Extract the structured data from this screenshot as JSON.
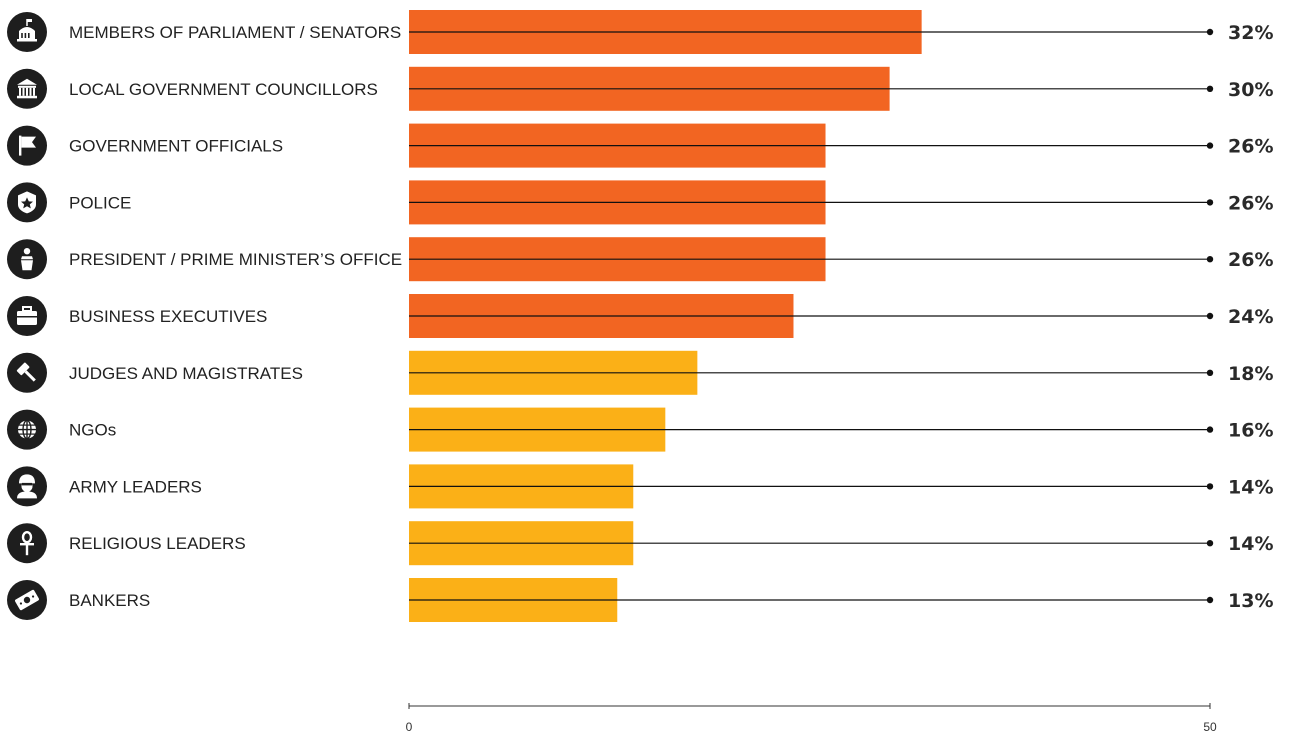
{
  "chart_data": {
    "type": "bar",
    "orientation": "horizontal",
    "categories": [
      "MEMBERS OF PARLIAMENT / SENATORS",
      "LOCAL GOVERNMENT COUNCILLORS",
      "GOVERNMENT OFFICIALS",
      "POLICE",
      "PRESIDENT / PRIME MINISTER’S OFFICE",
      "BUSINESS EXECUTIVES",
      "JUDGES AND MAGISTRATES",
      "NGOs",
      "ARMY LEADERS",
      "RELIGIOUS LEADERS",
      "BANKERS"
    ],
    "values": [
      32,
      30,
      26,
      26,
      26,
      24,
      18,
      16,
      14,
      14,
      13
    ],
    "value_labels": [
      "32%",
      "30%",
      "26%",
      "26%",
      "26%",
      "24%",
      "18%",
      "16%",
      "14%",
      "14%",
      "13%"
    ],
    "bar_colors": [
      "#f26522",
      "#f26522",
      "#f26522",
      "#f26522",
      "#f26522",
      "#f26522",
      "#fbb017",
      "#fbb017",
      "#fbb017",
      "#fbb017",
      "#fbb017"
    ],
    "icons": [
      "parliament-icon",
      "town-hall-icon",
      "flag-icon",
      "police-badge-icon",
      "podium-icon",
      "briefcase-icon",
      "gavel-icon",
      "globe-icon",
      "soldier-icon",
      "ankh-icon",
      "banknote-icon"
    ],
    "xlim": [
      0,
      50
    ],
    "x_ticks": [
      "0",
      "50"
    ],
    "grid": false,
    "legend": "none",
    "title": "",
    "xlabel": "",
    "ylabel": ""
  },
  "colors": {
    "icon_circle": "#1e1e1e",
    "icon_glyph": "#ffffff",
    "leader_line": "#111111",
    "axis": "#333333"
  }
}
